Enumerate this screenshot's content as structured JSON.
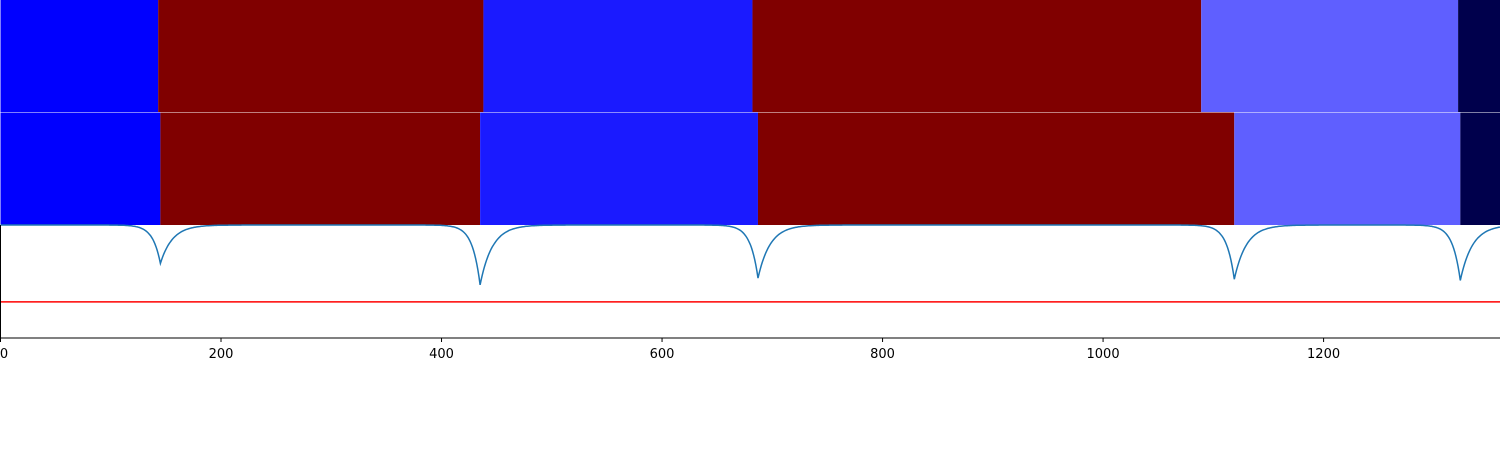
{
  "chart_data": {
    "type": "segmentation-plot",
    "xlim": [
      0,
      1360
    ],
    "ylim": [
      -1.0,
      0.0
    ],
    "x_ticks": [
      0,
      200,
      400,
      600,
      800,
      1000,
      1200
    ],
    "x_tick_labels": [
      "0",
      "200",
      "400",
      "600",
      "800",
      "1000",
      "1200"
    ],
    "grid": false,
    "title": "",
    "xlabel": "",
    "ylabel": "",
    "segment_rows": [
      {
        "segments": [
          {
            "start": 0,
            "end": 143,
            "color": "#0000ff"
          },
          {
            "start": 143,
            "end": 438,
            "color": "#800000"
          },
          {
            "start": 438,
            "end": 682,
            "color": "#1a1aff"
          },
          {
            "start": 682,
            "end": 1089,
            "color": "#800000"
          },
          {
            "start": 1089,
            "end": 1322,
            "color": "#5f5fff"
          },
          {
            "start": 1322,
            "end": 1360,
            "color": "#00004c"
          }
        ]
      },
      {
        "segments": [
          {
            "start": 0,
            "end": 145,
            "color": "#0000ff"
          },
          {
            "start": 145,
            "end": 435,
            "color": "#800000"
          },
          {
            "start": 435,
            "end": 687,
            "color": "#1a1aff"
          },
          {
            "start": 687,
            "end": 1119,
            "color": "#800000"
          },
          {
            "start": 1119,
            "end": 1324,
            "color": "#5f5fff"
          },
          {
            "start": 1324,
            "end": 1360,
            "color": "#00004c"
          }
        ]
      }
    ],
    "curve": {
      "color": "#1f77b4",
      "baseline": 0.0,
      "dips": [
        {
          "x": 145,
          "depth": -0.34
        },
        {
          "x": 435,
          "depth": -0.53
        },
        {
          "x": 687,
          "depth": -0.47
        },
        {
          "x": 1119,
          "depth": -0.48
        },
        {
          "x": 1324,
          "depth": -0.49
        }
      ]
    },
    "threshold": {
      "y": -0.68,
      "color": "#ff0000"
    }
  }
}
